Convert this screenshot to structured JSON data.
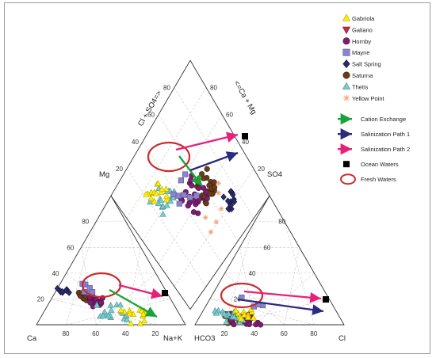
{
  "chart_data": {
    "type": "scatter",
    "diagram": "piper",
    "axis_labels": {
      "cation_mg": "Mg",
      "cation_ca": "Ca",
      "cation_nak": "Na+K",
      "anion_so4": "SO4",
      "anion_hco3": "HCO3",
      "anion_cl": "Cl",
      "diamond_left": "Cl + SO4=>",
      "diamond_right": "<=Ca + Mg"
    },
    "ticks": [
      "20",
      "40",
      "60",
      "80"
    ],
    "series": [
      {
        "name": "Gabriola",
        "marker": "triangle-up",
        "color": "#ffee00",
        "stroke": "#b8a800"
      },
      {
        "name": "Galiano",
        "marker": "triangle-down",
        "color": "#c0304a",
        "stroke": "#7a1020"
      },
      {
        "name": "Hornby",
        "marker": "circle",
        "color": "#7a1f6e",
        "stroke": "#4d1045"
      },
      {
        "name": "Mayne",
        "marker": "square",
        "color": "#8a84c8",
        "stroke": "#5c56a0"
      },
      {
        "name": "Salt Spring",
        "marker": "diamond",
        "color": "#2a2a6a",
        "stroke": "#15153f"
      },
      {
        "name": "Saturna",
        "marker": "circle",
        "color": "#6a3c1c",
        "stroke": "#3f220c"
      },
      {
        "name": "Thetis",
        "marker": "triangle-up",
        "color": "#7fc9cc",
        "stroke": "#3e9598"
      },
      {
        "name": "Yellow Point",
        "marker": "star",
        "color": "#f0a070",
        "stroke": "#e07a40"
      }
    ],
    "annotations": [
      {
        "name": "Cation Exchange",
        "color": "#1aa33a",
        "kind": "arrow"
      },
      {
        "name": "Salinization Path 1",
        "color": "#2b2a80",
        "kind": "arrow"
      },
      {
        "name": "Salinization Path 2",
        "color": "#e8207a",
        "kind": "arrow"
      },
      {
        "name": "Ocean Waters",
        "color": "#000000",
        "kind": "square"
      },
      {
        "name": "Fresh Waters",
        "color": "#cc2a2a",
        "kind": "ellipse"
      }
    ],
    "point_clouds": {
      "cation": [
        {
          "series": 5,
          "ca": 55,
          "mg": 22,
          "n": 24,
          "spread": 5
        },
        {
          "series": 2,
          "ca": 50,
          "mg": 18,
          "n": 18,
          "spread": 6
        },
        {
          "series": 6,
          "ca": 45,
          "mg": 10,
          "n": 18,
          "spread": 9
        },
        {
          "series": 0,
          "ca": 30,
          "mg": 6,
          "n": 14,
          "spread": 8
        },
        {
          "series": 4,
          "ca": 68,
          "mg": 26,
          "n": 10,
          "spread": 4
        },
        {
          "series": 3,
          "ca": 50,
          "mg": 28,
          "n": 6,
          "spread": 6
        }
      ],
      "anion": [
        {
          "series": 5,
          "hco3": 70,
          "so4": 5,
          "n": 22,
          "spread": 8
        },
        {
          "series": 2,
          "hco3": 65,
          "so4": 4,
          "n": 18,
          "spread": 9
        },
        {
          "series": 6,
          "hco3": 72,
          "so4": 6,
          "n": 16,
          "spread": 10
        },
        {
          "series": 0,
          "hco3": 60,
          "so4": 8,
          "n": 12,
          "spread": 9
        },
        {
          "series": 3,
          "hco3": 55,
          "so4": 18,
          "n": 4,
          "spread": 8
        }
      ],
      "diamond": [
        {
          "series": 5,
          "u": 0.58,
          "v": 0.62,
          "n": 28,
          "spread": 0.08
        },
        {
          "series": 2,
          "u": 0.55,
          "v": 0.5,
          "n": 24,
          "spread": 0.1
        },
        {
          "series": 4,
          "u": 0.78,
          "v": 0.72,
          "n": 14,
          "spread": 0.05
        },
        {
          "series": 6,
          "u": 0.35,
          "v": 0.3,
          "n": 18,
          "spread": 0.1
        },
        {
          "series": 0,
          "u": 0.3,
          "v": 0.3,
          "n": 14,
          "spread": 0.1
        },
        {
          "series": 3,
          "u": 0.5,
          "v": 0.45,
          "n": 8,
          "spread": 0.12
        },
        {
          "series": 7,
          "u": 0.65,
          "v": 0.6,
          "n": 6,
          "spread": 0.15
        }
      ]
    }
  }
}
